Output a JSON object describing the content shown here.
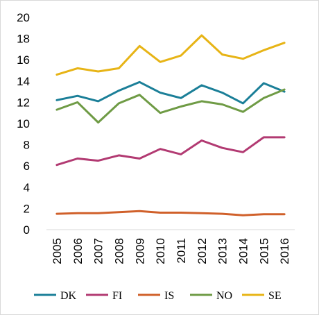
{
  "chart_data": {
    "type": "line",
    "title": "",
    "xlabel": "",
    "ylabel": "",
    "x": [
      "2005",
      "2006",
      "2007",
      "2008",
      "2009",
      "2010",
      "2011",
      "2012",
      "2013",
      "2014",
      "2015",
      "2016"
    ],
    "ylim": [
      0,
      20
    ],
    "yticks": [
      "0",
      "2",
      "4",
      "6",
      "8",
      "10",
      "12",
      "14",
      "16",
      "18",
      "20"
    ],
    "grid": false,
    "legend_position": "bottom",
    "series": [
      {
        "name": "DK",
        "color": "#1b7f98",
        "values": [
          12.2,
          12.6,
          12.1,
          13.1,
          13.9,
          12.9,
          12.4,
          13.6,
          12.9,
          11.9,
          13.8,
          13.0
        ]
      },
      {
        "name": "FI",
        "color": "#b23a72",
        "values": [
          6.1,
          6.7,
          6.5,
          7.0,
          6.7,
          7.6,
          7.1,
          8.4,
          7.7,
          7.3,
          8.7,
          8.7
        ]
      },
      {
        "name": "IS",
        "color": "#d0602a",
        "values": [
          1.5,
          1.55,
          1.55,
          1.65,
          1.75,
          1.6,
          1.6,
          1.55,
          1.5,
          1.35,
          1.45,
          1.45
        ]
      },
      {
        "name": "NO",
        "color": "#6f9b45",
        "values": [
          11.3,
          12.0,
          10.1,
          11.9,
          12.7,
          11.0,
          11.6,
          12.1,
          11.8,
          11.1,
          12.4,
          13.2
        ]
      },
      {
        "name": "SE",
        "color": "#e7b416",
        "values": [
          14.6,
          15.2,
          14.9,
          15.2,
          17.3,
          15.8,
          16.4,
          18.3,
          16.5,
          16.1,
          16.9,
          17.6
        ]
      }
    ]
  }
}
